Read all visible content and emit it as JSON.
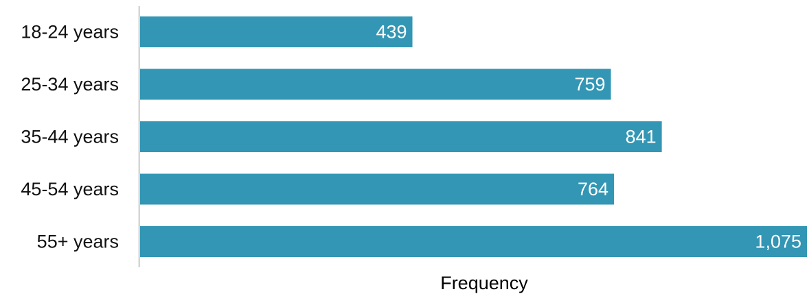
{
  "chart_data": {
    "type": "bar",
    "orientation": "horizontal",
    "categories": [
      "18-24 years",
      "25-34 years",
      "35-44 years",
      "45-54 years",
      "55+ years"
    ],
    "values": [
      439,
      759,
      841,
      764,
      1075
    ],
    "value_labels": [
      "439",
      "759",
      "841",
      "764",
      "1,075"
    ],
    "title": "",
    "xlabel": "Frequency",
    "ylabel": "",
    "xlim": [
      0,
      1075
    ],
    "grid": false,
    "legend": "none",
    "bar_color": "#3296b4",
    "axis_color": "#999999"
  }
}
